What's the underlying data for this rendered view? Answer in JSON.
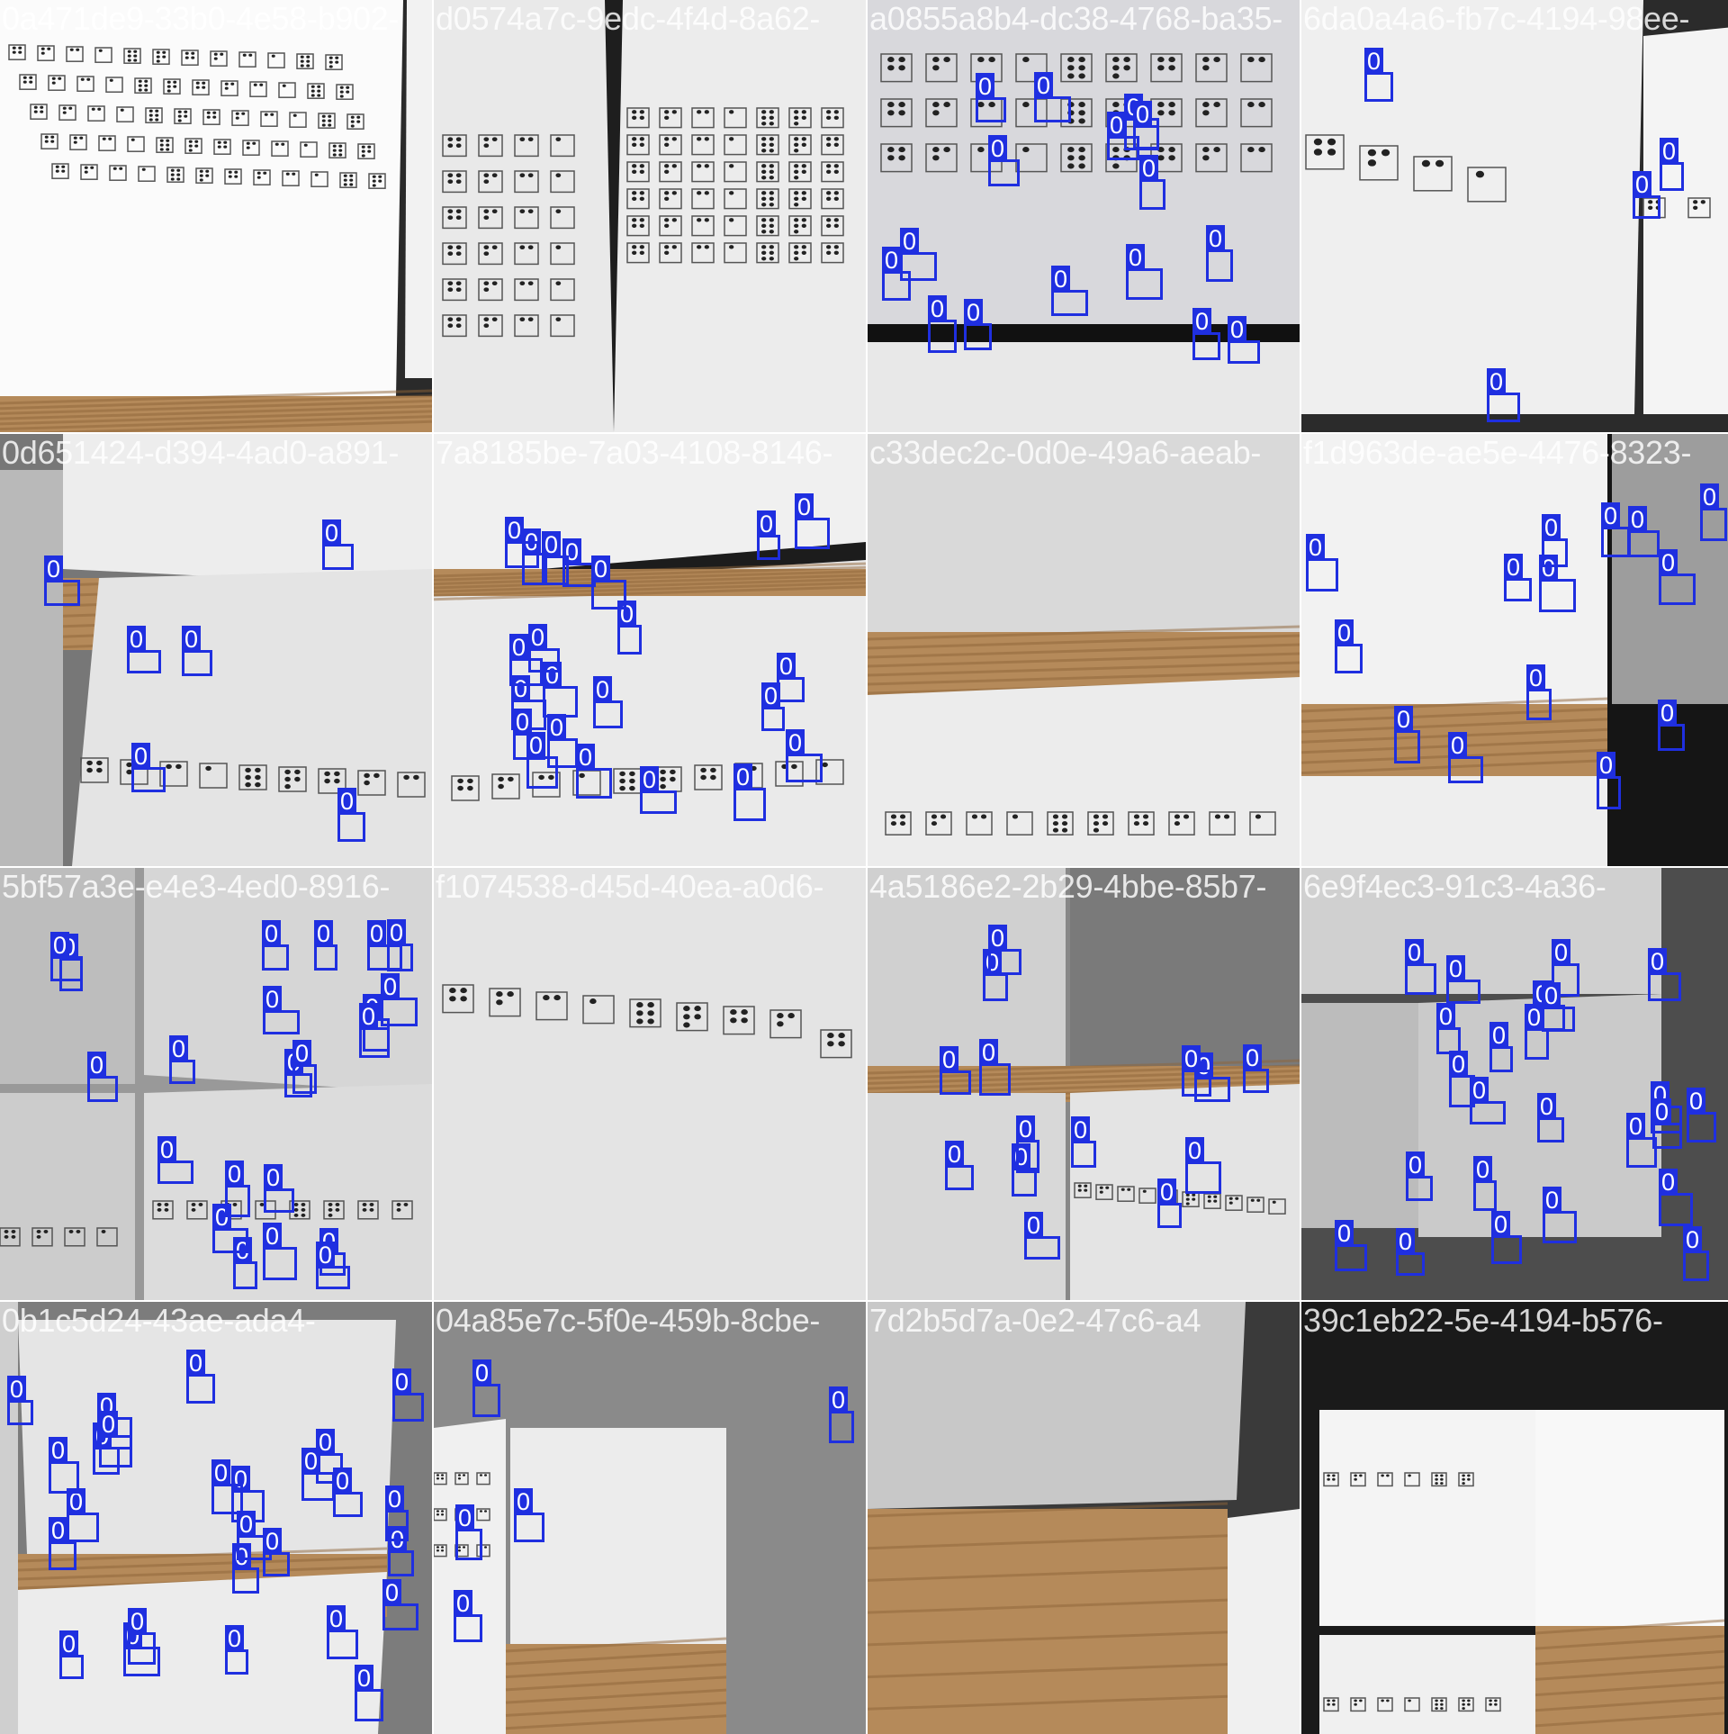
{
  "image_type": "training batch mosaic: 4x4 grid of augmented photographs of white paper cards printed with braille-like dot cells, with blue detection boxes labelled with class 0",
  "box_color": "#1f2fe0",
  "tiles": [
    {
      "title": "0a471de9-33b0-4e58-b902-",
      "scene": "sheet",
      "label": "",
      "boxes": 0
    },
    {
      "title": "d0574a7c-9edc-4f4d-8a62-",
      "scene": "two-sheets",
      "label": "",
      "boxes": 0
    },
    {
      "title": "a0855a8b4-dc38-4768-ba35-",
      "scene": "sheet-dark-bottom",
      "label": "0",
      "boxes": 16
    },
    {
      "title": "6da0a4a6-fb7c-4194-98ee-",
      "scene": "sheet-right",
      "label": "0",
      "boxes": 4
    },
    {
      "title": "0d651424-d394-4ad0-a891-",
      "scene": "desk-sheets",
      "label": "0",
      "boxes": 6
    },
    {
      "title": "7a8185be-7a03-4108-8146-",
      "scene": "tilted-sheet",
      "label": "0",
      "boxes": 22
    },
    {
      "title": "c33dec2c-0d0e-49a6-aeab-",
      "scene": "desk-strip",
      "label": "",
      "boxes": 0
    },
    {
      "title": "f1d963de-ae5e-4476-8323-",
      "scene": "sheets-dark",
      "label": "0",
      "boxes": 14
    },
    {
      "title": "5bf57a3e-e4e3-4ed0-8916-",
      "scene": "grey-sheets",
      "label": "0",
      "boxes": 22
    },
    {
      "title": "f1074538-d45d-40ea-a0d6-",
      "scene": "plain-sheet",
      "label": "",
      "boxes": 0
    },
    {
      "title": "4a5186e2-2b29-4bbe-85b7-",
      "scene": "split-sheets",
      "label": "0",
      "boxes": 14
    },
    {
      "title": "6e9f4ec3-91c3-4a36-",
      "scene": "grey-pad",
      "label": "0",
      "boxes": 24
    },
    {
      "title": "0b1c5d24-43ae-ada4-",
      "scene": "desk-bottom",
      "label": "0",
      "boxes": 26
    },
    {
      "title": "04a85e7c-5f0e-459b-8cbe-",
      "scene": "grey-pad-small",
      "label": "0",
      "boxes": 5
    },
    {
      "title": "7d2b5d7a-0e2-47c6-a4",
      "scene": "wood-bottom",
      "label": "",
      "boxes": 0
    },
    {
      "title": "39c1eb22-5e-4194-b576-",
      "scene": "collage",
      "label": "",
      "boxes": 0
    }
  ]
}
